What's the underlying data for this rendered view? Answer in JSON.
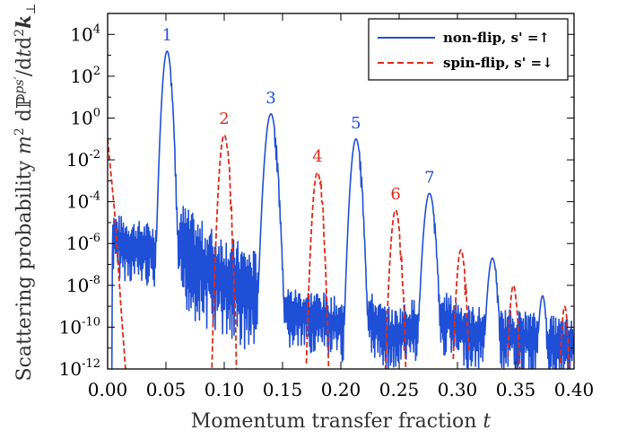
{
  "chart_data": {
    "type": "line",
    "xlabel": "Momentum transfer fraction t",
    "ylabel": "Scattering probability m² dℙ^{ps'}/dt d²k⊥",
    "xlim": [
      0.0,
      0.4
    ],
    "ylim_log10": [
      -12,
      5
    ],
    "y_scale": "log",
    "grid": false,
    "legend_position": "top-right",
    "x_ticks": [
      "0.00",
      "0.05",
      "0.10",
      "0.15",
      "0.20",
      "0.25",
      "0.30",
      "0.35",
      "0.40"
    ],
    "x_tick_values": [
      0.0,
      0.05,
      0.1,
      0.15,
      0.2,
      0.25,
      0.3,
      0.35,
      0.4
    ],
    "y_ticks": [
      {
        "exp": 4,
        "base": "10",
        "power": "4"
      },
      {
        "exp": 2,
        "base": "10",
        "power": "2"
      },
      {
        "exp": 0,
        "base": "10",
        "power": "0"
      },
      {
        "exp": -2,
        "base": "10",
        "power": "-2"
      },
      {
        "exp": -4,
        "base": "10",
        "power": "-4"
      },
      {
        "exp": -6,
        "base": "10",
        "power": "-6"
      },
      {
        "exp": -8,
        "base": "10",
        "power": "-8"
      },
      {
        "exp": -10,
        "base": "10",
        "power": "-10"
      },
      {
        "exp": -12,
        "base": "10",
        "power": "-12"
      }
    ],
    "series": [
      {
        "name": "non-flip, s' =↑",
        "color": "#1f4fd6",
        "style": "solid",
        "background_log10": [
          [
            0.002,
            -5.6
          ],
          [
            0.01,
            -5.9
          ],
          [
            0.02,
            -6.1
          ],
          [
            0.03,
            -6.2
          ],
          [
            0.04,
            -6.3
          ],
          [
            0.046,
            -6.1
          ],
          [
            0.062,
            -6.0
          ],
          [
            0.07,
            -6.5
          ],
          [
            0.08,
            -7.0
          ],
          [
            0.09,
            -7.3
          ],
          [
            0.1,
            -7.6
          ],
          [
            0.11,
            -7.9
          ],
          [
            0.12,
            -8.2
          ],
          [
            0.13,
            -8.5
          ],
          [
            0.155,
            -9.3
          ],
          [
            0.165,
            -9.4
          ],
          [
            0.18,
            -9.5
          ],
          [
            0.19,
            -9.7
          ],
          [
            0.2,
            -9.9
          ],
          [
            0.205,
            -10.0
          ],
          [
            0.226,
            -9.6
          ],
          [
            0.235,
            -10.1
          ],
          [
            0.245,
            -10.4
          ],
          [
            0.255,
            -10.1
          ],
          [
            0.265,
            -9.8
          ],
          [
            0.29,
            -9.6
          ],
          [
            0.3,
            -9.9
          ],
          [
            0.31,
            -10.2
          ],
          [
            0.33,
            -10.4
          ],
          [
            0.35,
            -10.4
          ],
          [
            0.37,
            -10.6
          ],
          [
            0.39,
            -10.8
          ],
          [
            0.4,
            -10.9
          ]
        ],
        "peaks": [
          {
            "t": 0.051,
            "log10_peak": 3.2,
            "width": 0.0045,
            "label": "1"
          },
          {
            "t": 0.14,
            "log10_peak": 0.2,
            "width": 0.0055,
            "label": "3"
          },
          {
            "t": 0.213,
            "log10_peak": -1.0,
            "width": 0.005,
            "label": "5"
          },
          {
            "t": 0.276,
            "log10_peak": -3.6,
            "width": 0.0055,
            "label": "7"
          },
          {
            "t": 0.33,
            "log10_peak": -6.7,
            "width": 0.005,
            "label": ""
          },
          {
            "t": 0.373,
            "log10_peak": -8.5,
            "width": 0.004,
            "label": ""
          }
        ]
      },
      {
        "name": "spin-flip, s' =↓",
        "color": "#e02a1a",
        "style": "dashed",
        "edge_log10": [
          [
            0.0,
            -1.0
          ],
          [
            0.006,
            -4.5
          ],
          [
            0.012,
            -9.5
          ],
          [
            0.016,
            -12.5
          ]
        ],
        "peaks": [
          {
            "t": 0.1,
            "log10_peak": -0.8,
            "width": 0.0055,
            "label": "2"
          },
          {
            "t": 0.18,
            "log10_peak": -2.6,
            "width": 0.0055,
            "label": "4"
          },
          {
            "t": 0.247,
            "log10_peak": -4.4,
            "width": 0.0055,
            "label": "6"
          },
          {
            "t": 0.303,
            "log10_peak": -6.3,
            "width": 0.005,
            "label": ""
          },
          {
            "t": 0.348,
            "log10_peak": -8.0,
            "width": 0.0045,
            "label": ""
          },
          {
            "t": 0.392,
            "log10_peak": -9.0,
            "width": 0.004,
            "label": ""
          }
        ]
      }
    ],
    "legend": [
      {
        "label": "non-flip, s' =↑",
        "color": "#1f4fd6",
        "style": "solid"
      },
      {
        "label": "spin-flip, s' =↓",
        "color": "#e02a1a",
        "style": "dashed"
      }
    ]
  }
}
